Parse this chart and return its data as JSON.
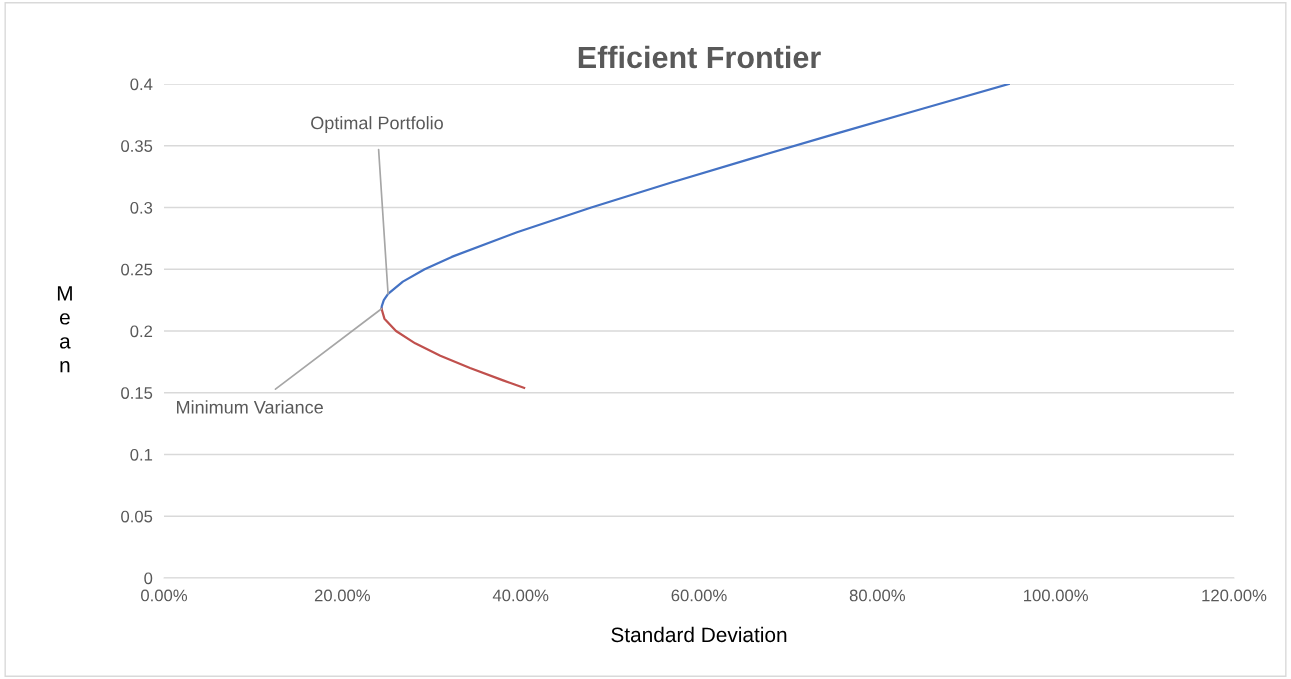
{
  "chart_data": {
    "type": "line",
    "title": "Efficient Frontier",
    "xlabel": "Standard Deviation",
    "ylabel": "Mean",
    "series": [
      {
        "color": "#4472c4",
        "x": [
          0.244,
          0.2442,
          0.2465,
          0.2513,
          0.2679,
          0.2923,
          0.3227,
          0.3959,
          0.4792,
          0.5681,
          0.6604,
          0.7548,
          0.8506,
          0.9474
        ],
        "values": [
          0.218,
          0.22,
          0.225,
          0.23,
          0.24,
          0.25,
          0.26,
          0.28,
          0.3,
          0.32,
          0.34,
          0.36,
          0.38,
          0.4
        ]
      },
      {
        "color": "#c0504d",
        "x": [
          0.244,
          0.2472,
          0.2602,
          0.2817,
          0.3099,
          0.3432,
          0.3803,
          0.4039
        ],
        "values": [
          0.218,
          0.21,
          0.2,
          0.19,
          0.18,
          0.17,
          0.16,
          0.154
        ]
      }
    ],
    "annotations": [
      {
        "text": "Optimal Portfolio",
        "x": 0.2513,
        "y": 0.23
      },
      {
        "text": "Minimum Variance",
        "x": 0.244,
        "y": 0.218
      }
    ],
    "xlim": [
      0,
      1.2
    ],
    "xticks": [
      {
        "value": 0,
        "label": "0.00%"
      },
      {
        "value": 0.2,
        "label": "20.00%"
      },
      {
        "value": 0.4,
        "label": "40.00%"
      },
      {
        "value": 0.6,
        "label": "60.00%"
      },
      {
        "value": 0.8,
        "label": "80.00%"
      },
      {
        "value": 1.0,
        "label": "100.00%"
      },
      {
        "value": 1.2,
        "label": "120.00%"
      }
    ],
    "ylim": [
      0,
      0.4
    ],
    "yticks": [
      0,
      0.05,
      0.1,
      0.15,
      0.2,
      0.25,
      0.3,
      0.35,
      0.4
    ],
    "grid": "y",
    "marker": "none",
    "line_style": "solid"
  }
}
